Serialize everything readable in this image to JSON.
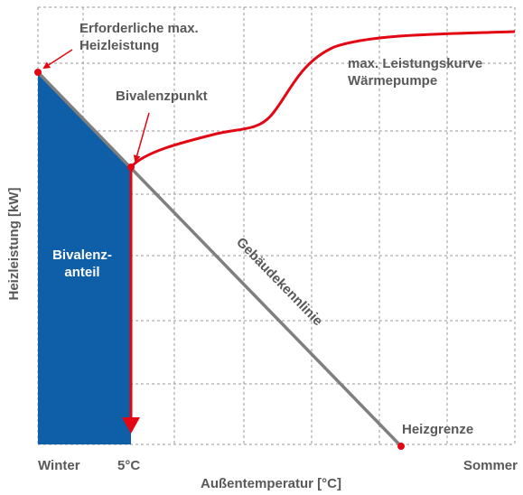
{
  "labels": {
    "required_max": [
      "Erforderliche max.",
      "Heizleistung"
    ],
    "bivalence_point": "Bivalenzpunkt",
    "curve": [
      "max. Leistungskurve",
      "Wärmepumpe"
    ],
    "bivalence_share": [
      "Bivalenz-",
      "anteil"
    ],
    "building_line": "Gebäudekennlinie",
    "heating_limit": "Heizgrenze",
    "x_start": "Winter",
    "x_mark": "5°C",
    "x_end": "Sommer",
    "x_axis": "Außentemperatur [°C]",
    "y_axis": "Heizleistung [kW]"
  }
}
